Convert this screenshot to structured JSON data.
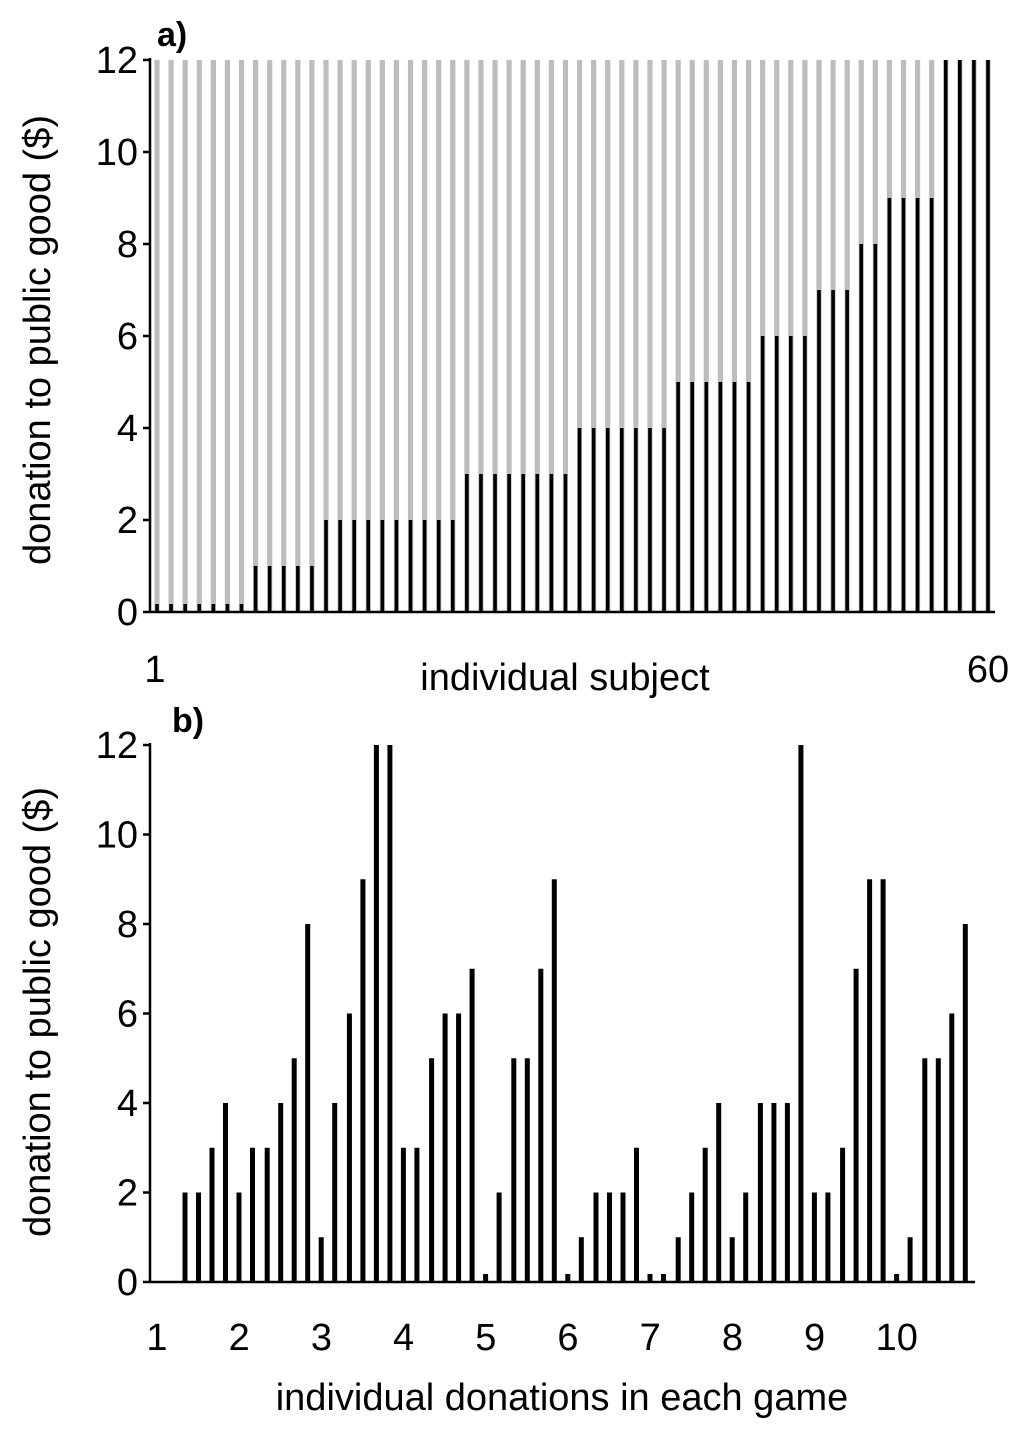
{
  "chart_data": [
    {
      "type": "bar",
      "panel_label": "a)",
      "xlabel": "individual subject",
      "ylabel": "donation to public good ($)",
      "x_tick_labels": [
        "1",
        "60"
      ],
      "y_ticks": [
        0,
        2,
        4,
        6,
        8,
        10,
        12
      ],
      "ylim": [
        0,
        12
      ],
      "categories": [
        "1",
        "2",
        "3",
        "4",
        "5",
        "6",
        "7",
        "8",
        "9",
        "10",
        "11",
        "12",
        "13",
        "14",
        "15",
        "16",
        "17",
        "18",
        "19",
        "20",
        "21",
        "22",
        "23",
        "24",
        "25",
        "26",
        "27",
        "28",
        "29",
        "30",
        "31",
        "32",
        "33",
        "34",
        "35",
        "36",
        "37",
        "38",
        "39",
        "40",
        "41",
        "42",
        "43",
        "44",
        "45",
        "46",
        "47",
        "48",
        "49",
        "50",
        "51",
        "52",
        "53",
        "54",
        "55",
        "56",
        "57",
        "58",
        "59",
        "60"
      ],
      "series": [
        {
          "role": "donation",
          "color": "#000000",
          "values": [
            0,
            0,
            0,
            0,
            0,
            0,
            0,
            1,
            1,
            1,
            1,
            1,
            2,
            2,
            2,
            2,
            2,
            2,
            2,
            2,
            2,
            2,
            3,
            3,
            3,
            3,
            3,
            3,
            3,
            3,
            4,
            4,
            4,
            4,
            4,
            4,
            4,
            5,
            5,
            5,
            5,
            5,
            5,
            6,
            6,
            6,
            6,
            7,
            7,
            7,
            8,
            8,
            9,
            9,
            9,
            9,
            12,
            12,
            12,
            12
          ]
        },
        {
          "role": "endowment",
          "color": "#bdbdbd",
          "values": [
            12,
            12,
            12,
            12,
            12,
            12,
            12,
            12,
            12,
            12,
            12,
            12,
            12,
            12,
            12,
            12,
            12,
            12,
            12,
            12,
            12,
            12,
            12,
            12,
            12,
            12,
            12,
            12,
            12,
            12,
            12,
            12,
            12,
            12,
            12,
            12,
            12,
            12,
            12,
            12,
            12,
            12,
            12,
            12,
            12,
            12,
            12,
            12,
            12,
            12,
            12,
            12,
            12,
            12,
            12,
            12,
            12,
            12,
            12,
            12
          ]
        }
      ]
    },
    {
      "type": "bar",
      "panel_label": "b)",
      "xlabel": "individual donations in each game",
      "ylabel": "donation to public good ($)",
      "x_tick_labels": [
        "1",
        "2",
        "3",
        "4",
        "5",
        "6",
        "7",
        "8",
        "9",
        "10"
      ],
      "y_ticks": [
        0,
        2,
        4,
        6,
        8,
        10,
        12
      ],
      "ylim": [
        0,
        12
      ],
      "groups": [
        {
          "game": "1",
          "values": [
            2,
            2,
            3,
            4,
            2,
            3
          ]
        },
        {
          "game": "2",
          "values": [
            3,
            4,
            5,
            8,
            1,
            4
          ]
        },
        {
          "game": "3",
          "values": [
            6,
            9,
            12,
            12,
            3,
            3
          ]
        },
        {
          "game": "4",
          "values": [
            5,
            6,
            6,
            7,
            0,
            2
          ]
        },
        {
          "game": "5",
          "values": [
            5,
            5,
            7,
            9,
            0,
            1
          ]
        },
        {
          "game": "6",
          "values": [
            2,
            2,
            2,
            3,
            0,
            0
          ]
        },
        {
          "game": "7",
          "values": [
            1,
            2,
            3,
            4,
            1,
            2
          ]
        },
        {
          "game": "8",
          "values": [
            4,
            4,
            4,
            12,
            2,
            2
          ]
        },
        {
          "game": "9",
          "values": [
            3,
            7,
            9,
            9,
            0,
            1
          ]
        },
        {
          "game": "10",
          "values": [
            5,
            5,
            6,
            8
          ]
        }
      ]
    }
  ]
}
